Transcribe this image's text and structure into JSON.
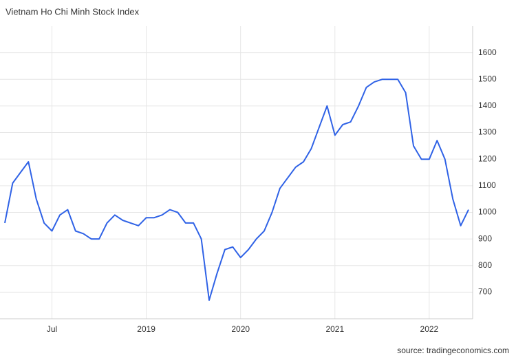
{
  "chart_data": {
    "type": "line",
    "title": "Vietnam Ho Chi Minh Stock Index",
    "source": "source: tradingeconomics.com",
    "x": [
      "2018-01",
      "2018-02",
      "2018-03",
      "2018-04",
      "2018-05",
      "2018-06",
      "2018-07",
      "2018-08",
      "2018-09",
      "2018-10",
      "2018-11",
      "2018-12",
      "2019-01",
      "2019-02",
      "2019-03",
      "2019-04",
      "2019-05",
      "2019-06",
      "2019-07",
      "2019-08",
      "2019-09",
      "2019-10",
      "2019-11",
      "2019-12",
      "2020-01",
      "2020-02",
      "2020-03",
      "2020-04",
      "2020-05",
      "2020-06",
      "2020-07",
      "2020-08",
      "2020-09",
      "2020-10",
      "2020-11",
      "2020-12",
      "2021-01",
      "2021-02",
      "2021-03",
      "2021-04",
      "2021-05",
      "2021-06",
      "2021-07",
      "2021-08",
      "2021-09",
      "2021-10",
      "2021-11",
      "2021-12",
      "2022-01",
      "2022-02",
      "2022-03",
      "2022-04",
      "2022-05",
      "2022-06",
      "2022-07",
      "2022-08",
      "2022-09",
      "2022-10",
      "2022-11",
      "2022-12"
    ],
    "series": [
      {
        "name": "Vietnam Ho Chi Minh Stock Index",
        "color": "#2f62e6",
        "values": [
          960,
          1110,
          1150,
          1190,
          1050,
          960,
          930,
          990,
          1010,
          930,
          920,
          900,
          900,
          960,
          990,
          970,
          960,
          950,
          980,
          980,
          990,
          1010,
          1000,
          960,
          960,
          900,
          670,
          770,
          860,
          870,
          830,
          860,
          900,
          930,
          1000,
          1090,
          1130,
          1170,
          1190,
          1240,
          1320,
          1400,
          1290,
          1330,
          1340,
          1400,
          1470,
          1490,
          1500,
          1500,
          1500,
          1450,
          1250,
          1200,
          1200,
          1270,
          1200,
          1050,
          950,
          1010
        ]
      }
    ],
    "xlim": [
      "2018-01",
      "2022-12"
    ],
    "xticks": [
      {
        "value": "2018-07",
        "label": "Jul"
      },
      {
        "value": "2019-07",
        "label": "2019"
      },
      {
        "value": "2020-07",
        "label": "2020"
      },
      {
        "value": "2021-07",
        "label": "2021"
      },
      {
        "value": "2022-07",
        "label": "2022"
      }
    ],
    "ylim": [
      600,
      1700
    ],
    "yticks": [
      700,
      800,
      900,
      1000,
      1100,
      1200,
      1300,
      1400,
      1500,
      1600
    ],
    "grid": true
  }
}
